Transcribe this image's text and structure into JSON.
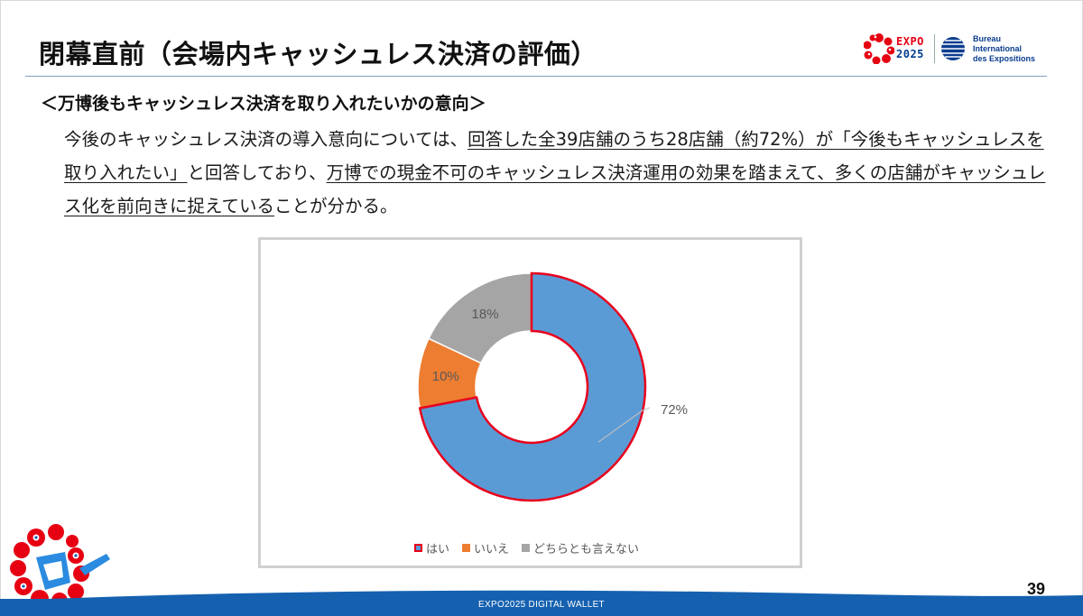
{
  "header": {
    "title": "閉幕直前（会場内キャッシュレス決済の評価）",
    "expo_logo_line1": "EXPO",
    "expo_logo_line2": "2025",
    "bie_logo_lines": [
      "Bureau",
      "International",
      "des Expositions"
    ]
  },
  "content": {
    "subheading": "＜万博後もキャッシュレス決済を取り入れたいかの意向＞",
    "paragraph": [
      {
        "text": "今後のキャッシュレス決済の導入意向については、",
        "underline": false
      },
      {
        "text": "回答した全39店舗のうち28店舗（約72%）が「今後もキャッシュレスを取り入れたい」",
        "underline": true
      },
      {
        "text": "と回答しており、",
        "underline": false
      },
      {
        "text": "万博での現金不可のキャッシュレス決済運用の効果を踏まえて、多くの店舗がキャッシュレス化を前向きに捉えている",
        "underline": true
      },
      {
        "text": "ことが分かる。",
        "underline": false
      }
    ]
  },
  "chart_data": {
    "type": "pie",
    "variant": "donut",
    "categories": [
      "はい",
      "いいえ",
      "どちらとも言えない"
    ],
    "values": [
      72,
      10,
      18
    ],
    "labels": [
      "72%",
      "10%",
      "18%"
    ],
    "colors": [
      "#5b9bd5",
      "#ed7d31",
      "#a5a5a5"
    ],
    "highlight_outline": "#e8001c",
    "legend_position": "bottom"
  },
  "footer": {
    "brand": "EXPO2025 DIGITAL WALLET",
    "page_number": "39"
  }
}
